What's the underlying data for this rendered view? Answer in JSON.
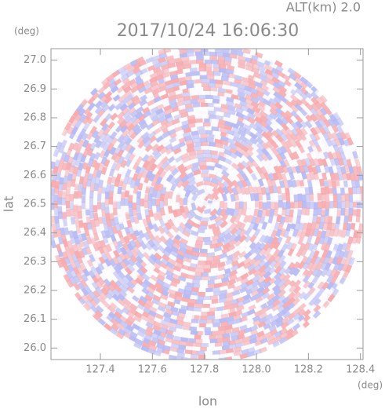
{
  "chart_data": {
    "type": "radar-ppi",
    "title": "2017/10/24 16:06:30",
    "subtitle": "ALT(km) 2.0",
    "x_label": "lon",
    "y_label": "lat",
    "x_unit": "(deg)",
    "y_unit": "(deg)",
    "xlim": [
      127.21,
      128.41
    ],
    "ylim": [
      25.96,
      27.04
    ],
    "xticks": [
      127.4,
      127.6,
      127.8,
      {
        "value": 128,
        "label": "128.0"
      },
      128.2,
      128.4
    ],
    "yticks": [
      {
        "value": 26,
        "label": "26.0"
      },
      26.1,
      26.2,
      26.3,
      26.4,
      26.5,
      26.6,
      26.7,
      26.8,
      26.9,
      {
        "value": 27,
        "label": "27.0"
      }
    ]
  }
}
